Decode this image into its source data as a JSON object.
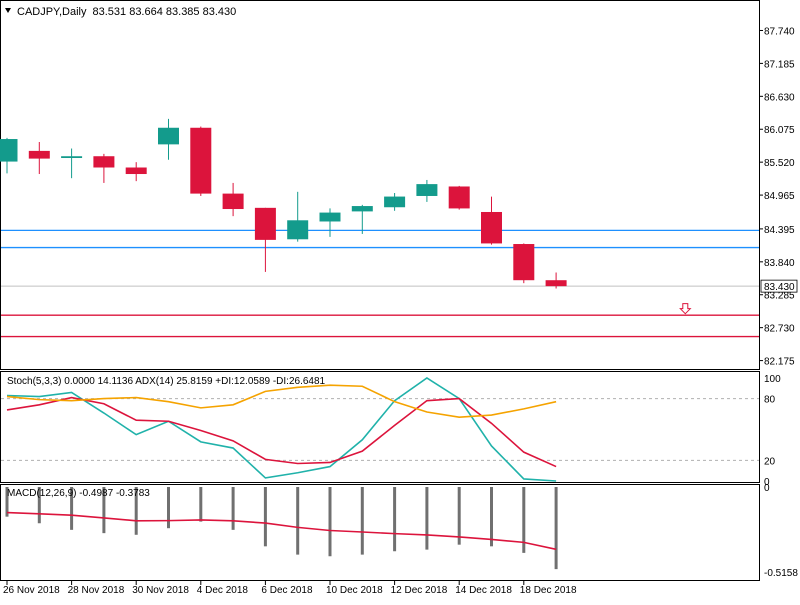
{
  "header": {
    "symbol_timeframe": "CADJPY,Daily",
    "ohlc": "83.531 83.664 83.385 83.430"
  },
  "colors": {
    "bull": "#139b8c",
    "bear": "#dc143c",
    "blue_line": "#1e90ff",
    "red_line": "#dc143c",
    "orange": "#f5a300",
    "teal": "#20b2aa",
    "macd_bar": "#707070",
    "grid_dotted": "#b0b0b0"
  },
  "chart_data": [
    {
      "type": "candlestick",
      "title": "CADJPY,Daily",
      "ylim": [
        82.05,
        88.22
      ],
      "y_ticks": [
        "87.740",
        "87.185",
        "86.630",
        "86.075",
        "85.520",
        "84.965",
        "84.395",
        "83.840",
        "83.285",
        "82.730",
        "82.175"
      ],
      "current_price_label": "83.430",
      "current_price": 83.43,
      "candles": [
        {
          "o": 85.53,
          "h": 85.93,
          "l": 85.33,
          "c": 85.91
        },
        {
          "o": 85.71,
          "h": 85.86,
          "l": 85.32,
          "c": 85.58
        },
        {
          "o": 85.59,
          "h": 85.75,
          "l": 85.25,
          "c": 85.62
        },
        {
          "o": 85.62,
          "h": 85.66,
          "l": 85.17,
          "c": 85.43
        },
        {
          "o": 85.43,
          "h": 85.52,
          "l": 85.2,
          "c": 85.32
        },
        {
          "o": 85.82,
          "h": 86.25,
          "l": 85.56,
          "c": 86.1
        },
        {
          "o": 86.1,
          "h": 86.12,
          "l": 84.95,
          "c": 84.99
        },
        {
          "o": 84.99,
          "h": 85.17,
          "l": 84.61,
          "c": 84.73
        },
        {
          "o": 84.75,
          "h": 84.75,
          "l": 83.67,
          "c": 84.21
        },
        {
          "o": 84.22,
          "h": 85.02,
          "l": 84.18,
          "c": 84.54
        },
        {
          "o": 84.52,
          "h": 84.74,
          "l": 84.26,
          "c": 84.67
        },
        {
          "o": 84.69,
          "h": 84.8,
          "l": 84.31,
          "c": 84.78
        },
        {
          "o": 84.76,
          "h": 85.0,
          "l": 84.7,
          "c": 84.94
        },
        {
          "o": 84.95,
          "h": 85.22,
          "l": 84.85,
          "c": 85.15
        },
        {
          "o": 85.11,
          "h": 85.12,
          "l": 84.72,
          "c": 84.74
        },
        {
          "o": 84.68,
          "h": 84.94,
          "l": 84.13,
          "c": 84.15
        },
        {
          "o": 84.14,
          "h": 84.15,
          "l": 83.48,
          "c": 83.53
        },
        {
          "o": 83.53,
          "h": 83.66,
          "l": 83.39,
          "c": 83.43
        }
      ],
      "horizontal_lines": [
        {
          "price": 84.37,
          "color": "blue"
        },
        {
          "price": 84.08,
          "color": "blue"
        },
        {
          "price": 82.94,
          "color": "red"
        },
        {
          "price": 82.58,
          "color": "red"
        }
      ],
      "arrow_marker": {
        "bar_index": 21,
        "price": 83.05,
        "direction": "down"
      }
    },
    {
      "type": "line",
      "title": "Stoch(5,3,3) 0.0000 14.1136  ADX(14) 25.8159 +DI:12.0589 -DI:26.6481",
      "ylim": [
        0,
        100
      ],
      "y_ticks": [
        "100",
        "80",
        "20",
        "0"
      ],
      "levels": [
        80,
        20
      ],
      "series": [
        {
          "color": "teal",
          "values": [
            83,
            82,
            86,
            66,
            45,
            58,
            38,
            32,
            3,
            8,
            14,
            40,
            78,
            100,
            80,
            34,
            2,
            0
          ]
        },
        {
          "color": "red",
          "values": [
            69,
            74,
            81,
            75,
            59,
            58,
            49,
            39,
            21,
            17,
            18,
            29,
            54,
            78,
            80,
            56,
            28,
            14
          ]
        },
        {
          "color": "orange",
          "values": [
            82,
            79,
            78,
            80,
            81,
            77,
            71,
            74,
            87,
            91,
            93,
            92,
            77,
            67,
            62,
            64,
            70,
            77
          ]
        }
      ]
    },
    {
      "type": "bar+line",
      "title": "MACD(12,26,9) -0.4987 -0.3783",
      "ylim": [
        -0.5158,
        0
      ],
      "y_ticks": [
        "0",
        "-0.5158"
      ],
      "histogram": [
        -0.18,
        -0.22,
        -0.26,
        -0.28,
        -0.29,
        -0.25,
        -0.21,
        -0.26,
        -0.36,
        -0.41,
        -0.42,
        -0.41,
        -0.39,
        -0.38,
        -0.35,
        -0.36,
        -0.4,
        -0.4987
      ],
      "signal": [
        -0.155,
        -0.163,
        -0.171,
        -0.188,
        -0.205,
        -0.204,
        -0.2,
        -0.205,
        -0.219,
        -0.245,
        -0.264,
        -0.273,
        -0.283,
        -0.291,
        -0.303,
        -0.318,
        -0.336,
        -0.3783
      ]
    }
  ],
  "x_axis": {
    "labels": [
      "26 Nov 2018",
      "28 Nov 2018",
      "30 Nov 2018",
      "4 Dec 2018",
      "6 Dec 2018",
      "10 Dec 2018",
      "12 Dec 2018",
      "14 Dec 2018",
      "18 Dec 2018"
    ]
  }
}
